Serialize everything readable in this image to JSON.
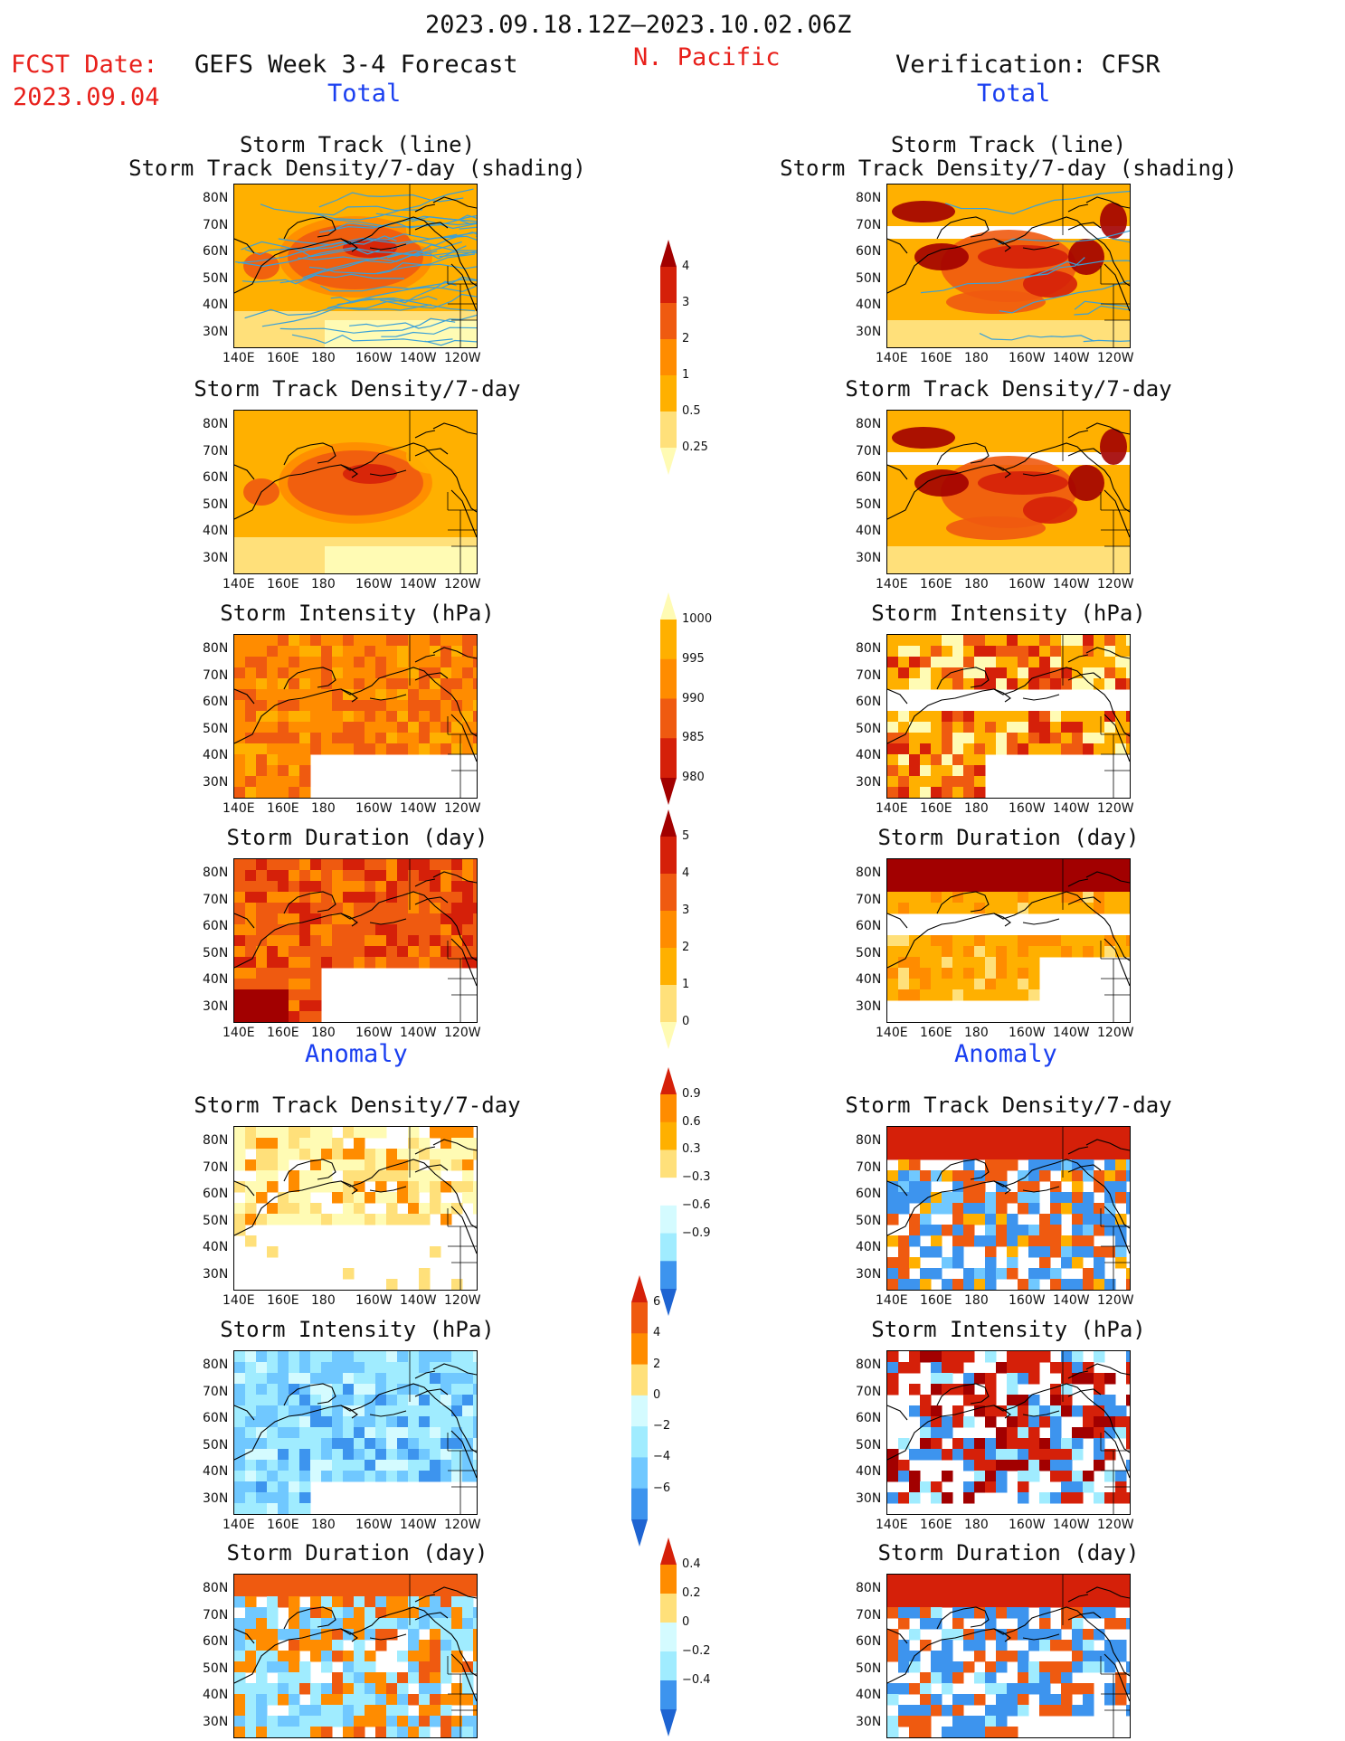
{
  "header": {
    "period": "2023.09.18.12Z–2023.10.02.06Z",
    "fcst_label": "FCST Date:",
    "fcst_date": "2023.09.04",
    "left_title": "GEFS Week 3-4 Forecast",
    "region": "N. Pacific",
    "right_title": "Verification: CFSR"
  },
  "sections": {
    "total": "Total",
    "anomaly": "Anomaly"
  },
  "panel_titles": {
    "track_line": "Storm Track (line)",
    "track_shading": "Storm Track Density/7-day (shading)",
    "density": "Storm Track Density/7-day",
    "intensity": "Storm Intensity (hPa)",
    "duration": "Storm Duration (day)"
  },
  "axes": {
    "lat_labels": [
      "80N",
      "70N",
      "60N",
      "50N",
      "40N",
      "30N"
    ],
    "lon_labels": [
      "140E",
      "160E",
      "180",
      "160W",
      "140W",
      "120W"
    ]
  },
  "colorbars": {
    "density": [
      "4",
      "3",
      "2",
      "1",
      "0.5",
      "0.25"
    ],
    "intensity": [
      "1000",
      "995",
      "990",
      "985",
      "980"
    ],
    "duration": [
      "5",
      "4",
      "3",
      "2",
      "1",
      "0"
    ],
    "density_anom": [
      "0.9",
      "0.6",
      "0.3",
      "−0.3",
      "−0.6",
      "−0.9"
    ],
    "intensity_anom": [
      "6",
      "4",
      "2",
      "0",
      "−2",
      "−4",
      "−6"
    ],
    "duration_anom": [
      "0.4",
      "0.2",
      "0",
      "−0.2",
      "−0.4"
    ]
  },
  "palette": {
    "warm": [
      "#fffbb4",
      "#ffe07a",
      "#ffb000",
      "#ff8c00",
      "#ef5a10",
      "#d52009",
      "#a20000"
    ],
    "cool": [
      "#d4fbff",
      "#a0ecff",
      "#70c8ff",
      "#3d94ee",
      "#1e64d2"
    ],
    "track_line": "#3aa0d8"
  }
}
